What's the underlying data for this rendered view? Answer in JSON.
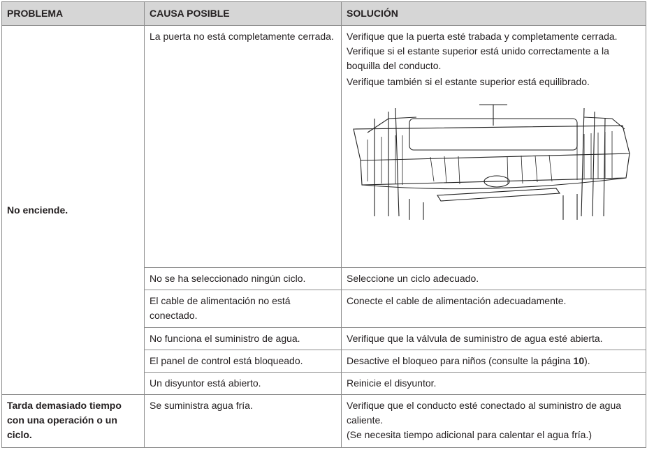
{
  "table": {
    "headers": [
      "PROBLEMA",
      "CAUSA POSIBLE",
      "SOLUCIÓN"
    ],
    "groups": [
      {
        "problem": "No enciende.",
        "rows": [
          {
            "cause": "La puerta no está completamente cerrada.",
            "solution": [
              "Verifique que la puerta esté trabada y completamente cerrada. Verifique si el estante superior está unido correctamente a la boquilla del conducto.",
              "Verifique también si el estante superior está equilibrado."
            ]
          },
          {
            "cause": "No se ha seleccionado ningún ciclo.",
            "solution": [
              "Seleccione un ciclo adecuado."
            ]
          },
          {
            "cause": "El cable de alimentación no está conectado.",
            "solution": [
              "Conecte el cable de alimentación adecuadamente."
            ]
          },
          {
            "cause": "No funciona el suministro de agua.",
            "solution": [
              "Verifique que la válvula de suministro de agua esté abierta."
            ]
          },
          {
            "cause": "El panel de control está bloqueado.",
            "solution": [
              "Desactive el bloqueo para niños (consulte la página ",
              "10",
              ")."
            ]
          },
          {
            "cause": "Un disyuntor está abierto.",
            "solution": [
              "Reinicie el disyuntor."
            ]
          }
        ]
      },
      {
        "problem": "Tarda demasiado tiempo con una operación o un ciclo.",
        "rows": [
          {
            "cause": "Se suministra agua fría.",
            "solution": [
              "Verifique que el conducto esté conectado al suministro de agua caliente.",
              "(Se necesita tiempo adicional para calentar el agua fría.)"
            ]
          }
        ]
      }
    ]
  }
}
